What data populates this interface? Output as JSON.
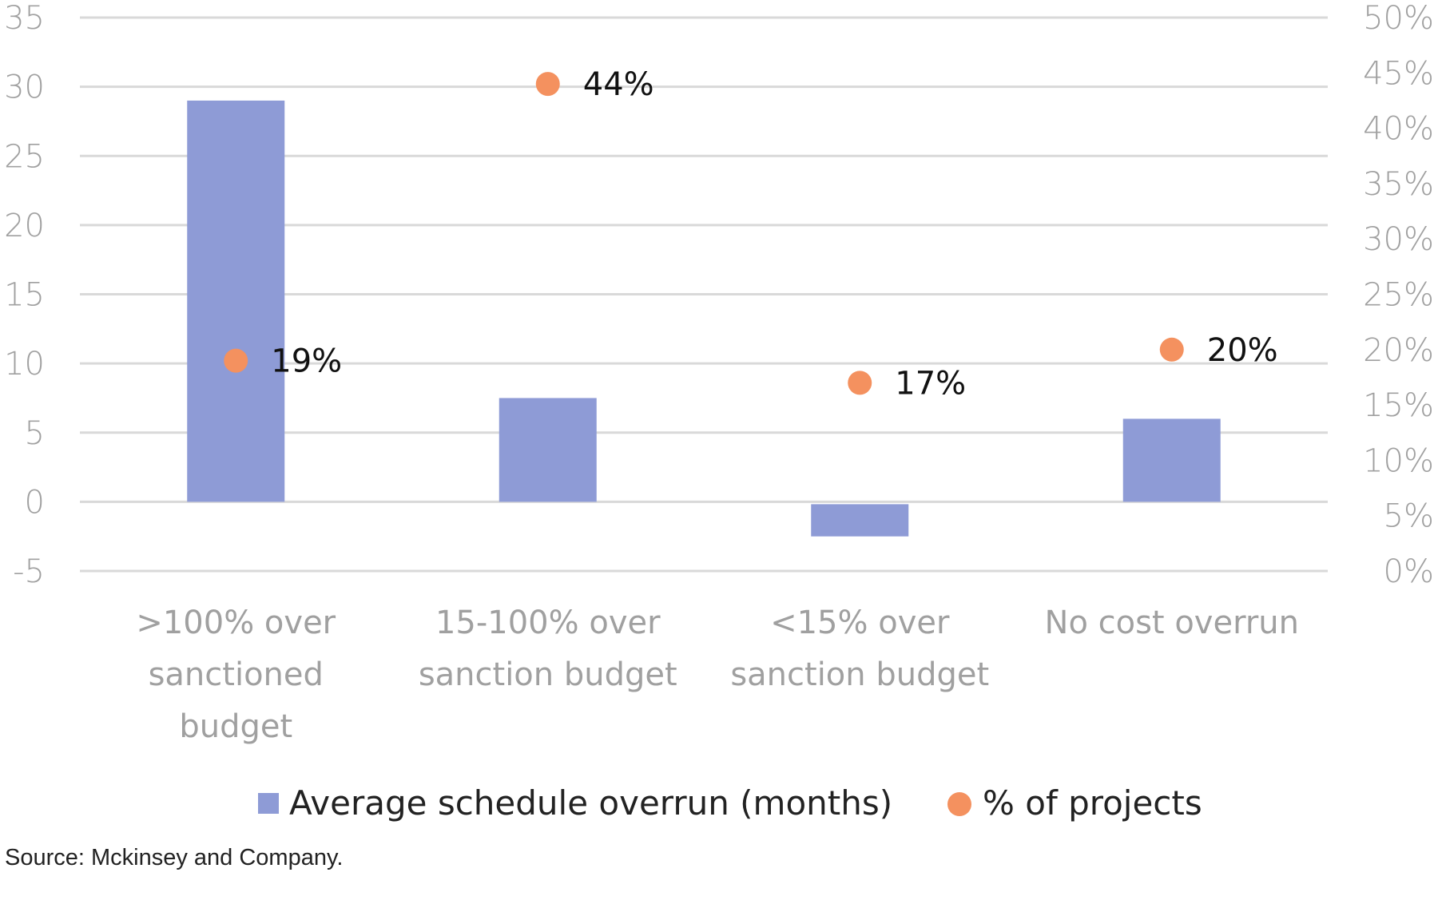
{
  "chart_data": {
    "type": "bar",
    "categories": [
      ">100% over sanctioned budget",
      "15-100% over sanction budget",
      "<15% over sanction budget",
      "No cost overrun"
    ],
    "category_lines": [
      [
        ">100% over",
        "sanctioned",
        "budget"
      ],
      [
        "15-100% over",
        "sanction budget"
      ],
      [
        "<15% over",
        "sanction budget"
      ],
      [
        "No cost overrun"
      ]
    ],
    "series": [
      {
        "name": "Average schedule overrun (months)",
        "type": "bar",
        "axis": "left",
        "values": [
          29,
          7.5,
          -2.5,
          6
        ],
        "color": "#8e9bd6"
      },
      {
        "name": "% of projects",
        "type": "scatter",
        "axis": "right",
        "values": [
          19,
          44,
          17,
          20
        ],
        "labels": [
          "19%",
          "44%",
          "17%",
          "20%"
        ],
        "color": "#f4915f"
      }
    ],
    "y_left": {
      "ylim": [
        -5,
        35
      ],
      "ticks": [
        -5,
        0,
        5,
        10,
        15,
        20,
        25,
        30,
        35
      ],
      "tick_labels": [
        "-5",
        "0",
        "5",
        "10",
        "15",
        "20",
        "25",
        "30",
        "35"
      ]
    },
    "y_right": {
      "ylim": [
        0,
        50
      ],
      "ticks": [
        0,
        5,
        10,
        15,
        20,
        25,
        30,
        35,
        40,
        45,
        50
      ],
      "tick_labels": [
        "0%",
        "5%",
        "10%",
        "15%",
        "20%",
        "25%",
        "30%",
        "35%",
        "40%",
        "45%",
        "50%"
      ]
    },
    "grid": true,
    "legend_position": "bottom-center",
    "title": "",
    "xlabel": "",
    "ylabel": ""
  },
  "source_note": "Source: Mckinsey and Company."
}
